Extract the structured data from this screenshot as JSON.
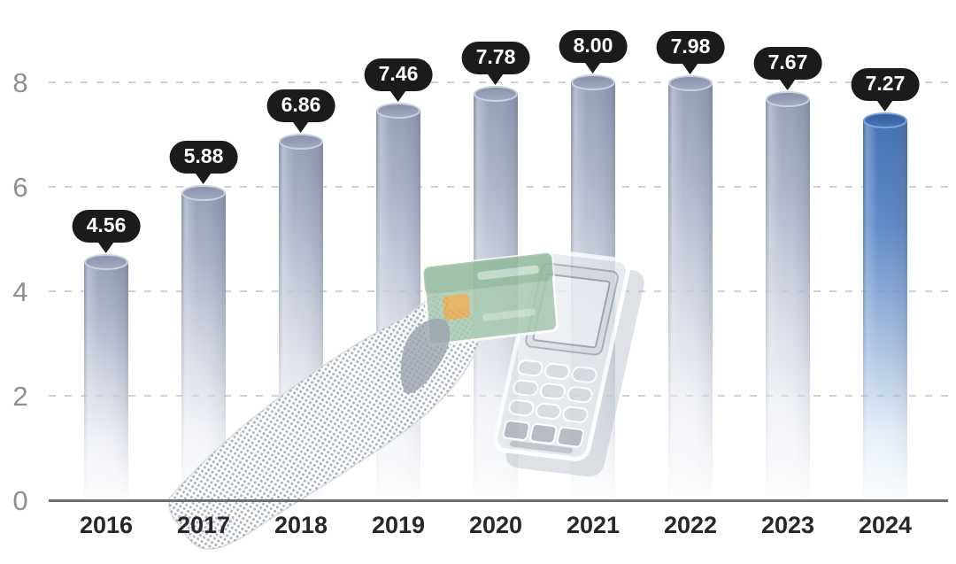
{
  "chart_data": {
    "type": "bar",
    "title": "",
    "xlabel": "",
    "ylabel": "",
    "categories": [
      "2016",
      "2017",
      "2018",
      "2019",
      "2020",
      "2021",
      "2022",
      "2023",
      "2024"
    ],
    "values": [
      4.56,
      5.88,
      6.86,
      7.46,
      7.78,
      8.0,
      7.98,
      7.67,
      7.27
    ],
    "value_labels": [
      "4.56",
      "5.88",
      "6.86",
      "7.46",
      "7.78",
      "8.00",
      "7.98",
      "7.67",
      "7.27"
    ],
    "ylim": [
      0,
      8.5
    ],
    "yticks": [
      0,
      2,
      4,
      6,
      8
    ],
    "grid": "horizontal-dashed",
    "legend": "none",
    "bar_style": "3d-cylinder-fading-to-white",
    "highlight_index": 8,
    "colors": {
      "bar_default": "#96a0b8",
      "bar_highlight": "#3e6fb4",
      "label_bubble": "#1b1b1b",
      "label_text": "#ffffff",
      "gridline": "#c9c9c9",
      "axis_line": "#6b6e73",
      "ytick_text": "#8f8f8f",
      "xtick_text": "#282828"
    }
  },
  "illustration": {
    "name": "hand-tapping-bank-card-on-pos-terminal",
    "card_color": "#a7c9b0",
    "card_band_color": "#8db699",
    "chip_color": "#e4a94f",
    "card_stripe_color": "#cadfd0",
    "terminal_body_color": "#e2e5ea",
    "terminal_bezel_color": "#d6dae0",
    "terminal_screen_color": "#eaedf2",
    "terminal_key_color": "#d0d5dc",
    "terminal_dark_key_color": "#a6acb7",
    "terminal_base_color": "#b4bac3",
    "hand_dot_color": "#969eab",
    "finger_shadow_color": "#9ba3ad"
  }
}
